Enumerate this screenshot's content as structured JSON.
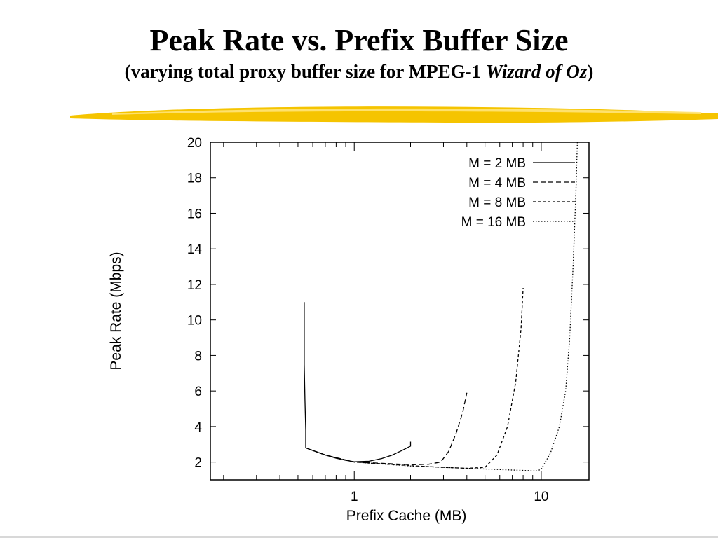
{
  "slide": {
    "title": "Peak Rate vs. Prefix Buffer Size",
    "subtitle_prefix": "(varying total proxy buffer size for MPEG-1 ",
    "subtitle_italic": "Wizard of Oz",
    "subtitle_suffix": ")",
    "accent_color": "#F5C400"
  },
  "chart_data": {
    "type": "line",
    "xlabel": "Prefix Cache (MB)",
    "ylabel": "Peak Rate (Mbps)",
    "x_scale": "log",
    "xlim": [
      0.17,
      18
    ],
    "ylim": [
      1,
      20
    ],
    "x_tick_labels": [
      {
        "value": 1,
        "label": "1"
      },
      {
        "value": 10,
        "label": "10"
      }
    ],
    "y_ticks": [
      2,
      4,
      6,
      8,
      10,
      12,
      14,
      16,
      18,
      20
    ],
    "legend_position": "top-right",
    "grid": false,
    "series": [
      {
        "name": "M = 2 MB",
        "dash": "solid",
        "points": [
          [
            0.54,
            11.0
          ],
          [
            0.54,
            7.5
          ],
          [
            0.545,
            5.5
          ],
          [
            0.55,
            3.8
          ],
          [
            0.55,
            2.8
          ],
          [
            0.6,
            2.65
          ],
          [
            0.7,
            2.4
          ],
          [
            0.8,
            2.22
          ],
          [
            0.9,
            2.1
          ],
          [
            1.0,
            2.02
          ],
          [
            1.2,
            2.05
          ],
          [
            1.4,
            2.2
          ],
          [
            1.6,
            2.4
          ],
          [
            1.8,
            2.65
          ],
          [
            2.0,
            2.9
          ],
          [
            2.0,
            3.15
          ]
        ]
      },
      {
        "name": "M = 4 MB",
        "dash": "dashed",
        "points": [
          [
            0.55,
            2.8
          ],
          [
            0.7,
            2.4
          ],
          [
            1.0,
            2.0
          ],
          [
            1.5,
            1.92
          ],
          [
            2.0,
            1.85
          ],
          [
            2.5,
            1.88
          ],
          [
            2.9,
            2.0
          ],
          [
            3.2,
            2.6
          ],
          [
            3.5,
            3.6
          ],
          [
            3.8,
            4.8
          ],
          [
            4.0,
            5.9
          ]
        ]
      },
      {
        "name": "M = 8 MB",
        "dash": "short-dashed",
        "points": [
          [
            0.55,
            2.8
          ],
          [
            0.7,
            2.4
          ],
          [
            1.0,
            2.0
          ],
          [
            2.0,
            1.8
          ],
          [
            3.0,
            1.7
          ],
          [
            4.0,
            1.65
          ],
          [
            5.0,
            1.7
          ],
          [
            5.8,
            2.4
          ],
          [
            6.6,
            4.0
          ],
          [
            7.3,
            6.5
          ],
          [
            7.8,
            9.5
          ],
          [
            8.0,
            11.8
          ]
        ]
      },
      {
        "name": "M = 16 MB",
        "dash": "dotted",
        "points": [
          [
            0.55,
            2.8
          ],
          [
            0.7,
            2.4
          ],
          [
            1.0,
            2.0
          ],
          [
            2.0,
            1.78
          ],
          [
            4.0,
            1.65
          ],
          [
            7.0,
            1.55
          ],
          [
            9.5,
            1.5
          ],
          [
            10.0,
            1.6
          ],
          [
            11.2,
            2.5
          ],
          [
            12.5,
            4.0
          ],
          [
            13.5,
            6.0
          ],
          [
            14.2,
            9.0
          ],
          [
            14.8,
            13.0
          ],
          [
            15.3,
            17.0
          ],
          [
            15.6,
            20.0
          ]
        ]
      }
    ]
  }
}
